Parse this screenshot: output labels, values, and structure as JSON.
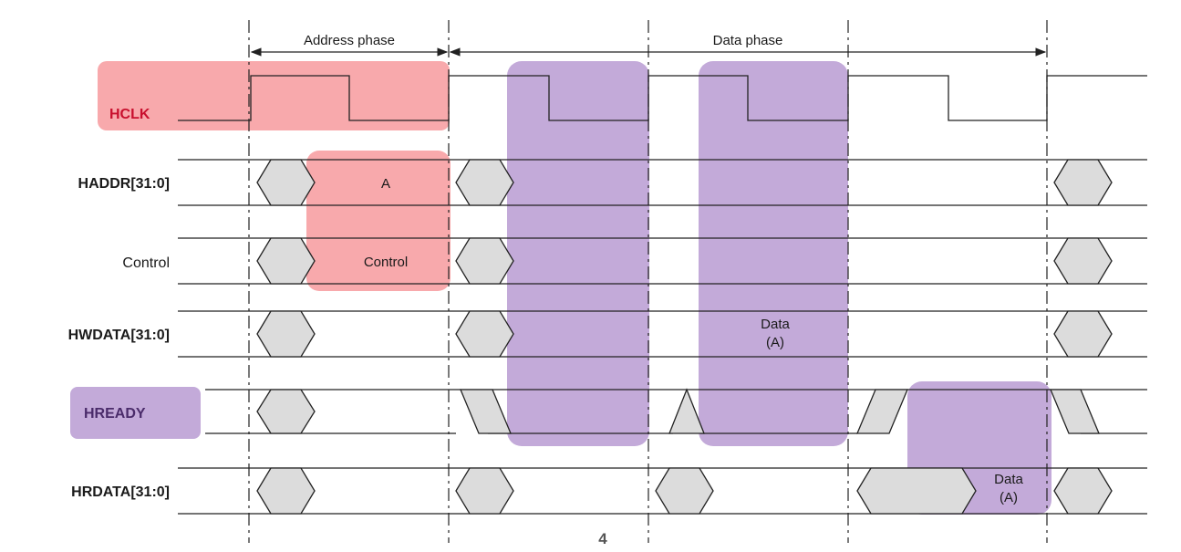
{
  "phases": {
    "address_label": "Address phase",
    "data_label": "Data phase"
  },
  "signals": {
    "hclk": "HCLK",
    "haddr": "HADDR[31:0]",
    "control": "Control",
    "hwdata": "HWDATA[31:0]",
    "hready": "HREADY",
    "hrdata": "HRDATA[31:0]"
  },
  "cells": {
    "haddr_value": "A",
    "control_value": "Control",
    "hwdata_value_line1": "Data",
    "hwdata_value_line2": "(A)",
    "hrdata_value_line1": "Data",
    "hrdata_value_line2": "(A)"
  },
  "page_number": "4",
  "colors": {
    "address_highlight": "#f79a9e",
    "data_highlight": "#b89bd2",
    "crossing_fill": "#dcdcdc",
    "line": "#222222"
  }
}
